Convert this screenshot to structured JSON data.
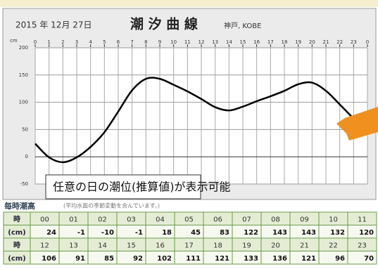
{
  "chart_data": {
    "type": "line",
    "date": "2015 年 12月 27日",
    "title": "潮 汐 曲 線",
    "place": "神戸, KOBE",
    "y_unit": "cm",
    "x": [
      0,
      1,
      2,
      3,
      4,
      5,
      6,
      7,
      8,
      9,
      10,
      11,
      12,
      13,
      14,
      15,
      16,
      17,
      18,
      19,
      20,
      21,
      22,
      23
    ],
    "series": [
      {
        "color": "#000000",
        "values": [
          24,
          -1,
          -10,
          -1,
          18,
          45,
          83,
          122,
          143,
          143,
          132,
          120,
          106,
          91,
          85,
          92,
          102,
          111,
          121,
          133,
          136,
          121,
          96,
          70
        ]
      }
    ],
    "xlim": [
      0,
      24
    ],
    "xticks": [
      0,
      1,
      2,
      3,
      4,
      5,
      6,
      7,
      8,
      9,
      10,
      11,
      12,
      13,
      14,
      15,
      16,
      17,
      18,
      19,
      20,
      21,
      22,
      23,
      {
        "value": 24,
        "label": "0"
      }
    ],
    "ylim": [
      -50,
      200
    ],
    "yticks": [
      -50,
      0,
      50,
      100,
      150,
      200
    ],
    "grid": true,
    "annotation": "任意の日の潮位(推算値)が表示可能"
  },
  "table": {
    "title": "毎時潮高",
    "note": "(平均水面の季節変動を含んでいます。)",
    "hour_header": "時",
    "unit_header": "(cm)",
    "hours": [
      "00",
      "01",
      "02",
      "03",
      "04",
      "05",
      "06",
      "07",
      "08",
      "09",
      "10",
      "11",
      "12",
      "13",
      "14",
      "15",
      "16",
      "17",
      "18",
      "19",
      "20",
      "21",
      "22",
      "23"
    ]
  }
}
